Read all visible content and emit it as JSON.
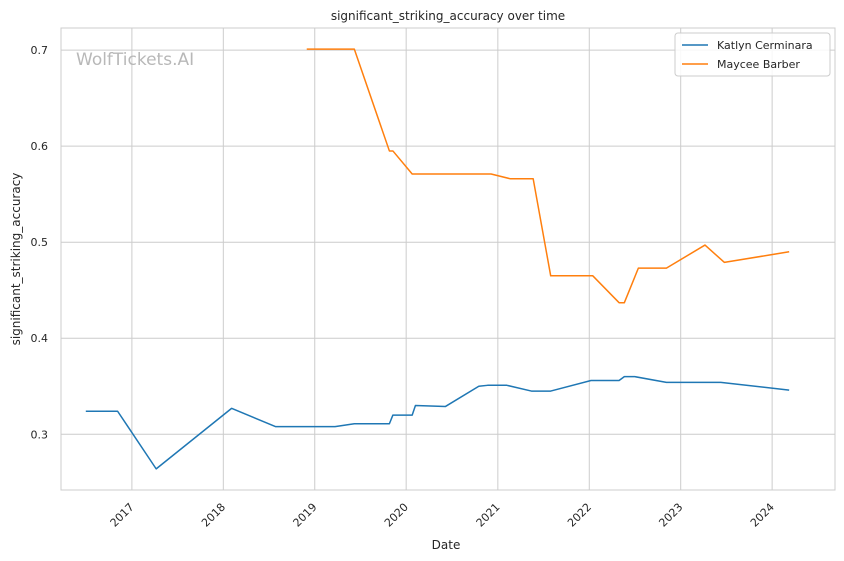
{
  "chart_data": {
    "type": "line",
    "title": "significant_striking_accuracy over time",
    "xlabel": "Date",
    "ylabel": "significant_striking_accuracy",
    "watermark": "WolfTickets.AI",
    "x_ticks": [
      "2017",
      "2018",
      "2019",
      "2020",
      "2021",
      "2022",
      "2023",
      "2024"
    ],
    "y_ticks": [
      "0.3",
      "0.4",
      "0.5",
      "0.6",
      "0.7"
    ],
    "xlim": [
      "2016-03-24",
      "2024-09-08"
    ],
    "ylim": [
      0.242,
      0.723
    ],
    "grid": true,
    "legend_position": "top-right",
    "series": [
      {
        "name": "Katlyn Cerminara",
        "color": "#1f77b4",
        "points": [
          [
            "2016-07-01",
            0.324
          ],
          [
            "2016-11-05",
            0.324
          ],
          [
            "2017-04-08",
            0.264
          ],
          [
            "2018-02-03",
            0.327
          ],
          [
            "2018-07-28",
            0.308
          ],
          [
            "2018-12-30",
            0.308
          ],
          [
            "2019-03-23",
            0.308
          ],
          [
            "2019-06-08",
            0.311
          ],
          [
            "2019-10-26",
            0.311
          ],
          [
            "2019-11-09",
            0.32
          ],
          [
            "2020-01-25",
            0.32
          ],
          [
            "2020-02-07",
            0.33
          ],
          [
            "2020-06-06",
            0.329
          ],
          [
            "2020-10-17",
            0.35
          ],
          [
            "2020-11-21",
            0.351
          ],
          [
            "2021-02-06",
            0.351
          ],
          [
            "2021-05-15",
            0.345
          ],
          [
            "2021-07-31",
            0.345
          ],
          [
            "2022-01-08",
            0.356
          ],
          [
            "2022-04-30",
            0.356
          ],
          [
            "2022-05-21",
            0.36
          ],
          [
            "2022-07-02",
            0.36
          ],
          [
            "2022-11-05",
            0.354
          ],
          [
            "2023-06-10",
            0.354
          ],
          [
            "2024-03-09",
            0.346
          ]
        ]
      },
      {
        "name": "Maycee Barber",
        "color": "#ff7f0e",
        "points": [
          [
            "2018-11-30",
            0.701
          ],
          [
            "2019-06-08",
            0.701
          ],
          [
            "2019-10-26",
            0.595
          ],
          [
            "2019-11-09",
            0.595
          ],
          [
            "2020-01-25",
            0.571
          ],
          [
            "2020-12-05",
            0.571
          ],
          [
            "2021-02-20",
            0.566
          ],
          [
            "2021-05-22",
            0.566
          ],
          [
            "2021-07-31",
            0.465
          ],
          [
            "2022-01-15",
            0.465
          ],
          [
            "2022-04-30",
            0.437
          ],
          [
            "2022-05-21",
            0.437
          ],
          [
            "2022-07-16",
            0.473
          ],
          [
            "2022-11-05",
            0.473
          ],
          [
            "2023-04-08",
            0.497
          ],
          [
            "2023-06-24",
            0.479
          ],
          [
            "2024-03-09",
            0.49
          ]
        ]
      }
    ]
  }
}
